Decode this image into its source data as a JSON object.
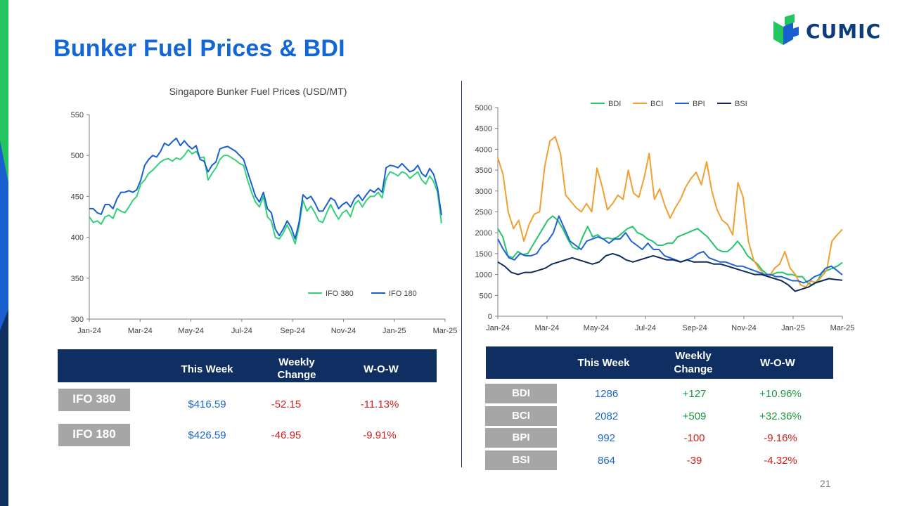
{
  "page": {
    "title": "Bunker Fuel Prices & BDI",
    "page_number": "21"
  },
  "logo": {
    "text": "CUMIC"
  },
  "colors": {
    "accent_blue": "#1266d6",
    "navy": "#0f2f62",
    "green": "#22c55e",
    "ifo180": "#1a5fd0",
    "ifo380": "#33d17a",
    "bdi": "#27c46b",
    "bci": "#f0a030",
    "bpi": "#1f63d6",
    "bsi": "#0e2a5a"
  },
  "left_table": {
    "headers": [
      "This Week",
      "Weekly\nChange",
      "W-O-W"
    ],
    "header_this_week": "This Week",
    "header_weekly": "Weekly",
    "header_change": "Change",
    "header_wow": "W-O-W",
    "rows": [
      {
        "label": "IFO 380",
        "this_week": "$416.59",
        "weekly_change": "-52.15",
        "wow": "-11.13%"
      },
      {
        "label": "IFO 180",
        "this_week": "$426.59",
        "weekly_change": "-46.95",
        "wow": "-9.91%"
      }
    ]
  },
  "right_table": {
    "header_this_week": "This Week",
    "header_weekly": "Weekly",
    "header_change": "Change",
    "header_wow": "W-O-W",
    "rows": [
      {
        "label": "BDI",
        "this_week": "1286",
        "weekly_change": "+127",
        "wow": "+10.96%"
      },
      {
        "label": "BCI",
        "this_week": "2082",
        "weekly_change": "+509",
        "wow": "+32.36%"
      },
      {
        "label": "BPI",
        "this_week": "992",
        "weekly_change": "-100",
        "wow": "-9.16%"
      },
      {
        "label": "BSI",
        "this_week": "864",
        "weekly_change": "-39",
        "wow": "-4.32%"
      }
    ]
  },
  "chart_data": [
    {
      "type": "line",
      "title": "Singapore Bunker Fuel Prices (USD/MT)",
      "xlabel": "",
      "ylabel": "",
      "x_ticks": [
        "Jan-24",
        "Mar-24",
        "May-24",
        "Jul-24",
        "Sep-24",
        "Nov-24",
        "Jan-25",
        "Mar-25"
      ],
      "ylim": [
        300,
        550
      ],
      "y_ticks": [
        300,
        350,
        400,
        450,
        500,
        550
      ],
      "legend_position": "bottom-right",
      "grid": false,
      "series": [
        {
          "name": "IFO 380",
          "color": "#33d17a",
          "values": [
            425,
            418,
            420,
            416,
            425,
            427,
            423,
            435,
            432,
            430,
            437,
            445,
            450,
            465,
            470,
            478,
            482,
            487,
            492,
            495,
            496,
            493,
            497,
            495,
            500,
            507,
            502,
            505,
            497,
            498,
            470,
            478,
            485,
            495,
            500,
            500,
            497,
            494,
            490,
            488,
            470,
            455,
            443,
            437,
            450,
            425,
            420,
            400,
            398,
            405,
            415,
            405,
            392,
            413,
            445,
            432,
            438,
            430,
            420,
            418,
            430,
            440,
            430,
            422,
            430,
            433,
            425,
            440,
            445,
            437,
            445,
            450,
            450,
            455,
            448,
            472,
            480,
            478,
            475,
            480,
            478,
            472,
            476,
            480,
            470,
            465,
            475,
            468,
            455,
            417
          ]
        },
        {
          "name": "IFO 180",
          "color": "#1a5fd0",
          "values": [
            435,
            435,
            430,
            428,
            440,
            440,
            435,
            447,
            455,
            455,
            457,
            455,
            458,
            470,
            488,
            495,
            500,
            498,
            505,
            515,
            512,
            517,
            521,
            512,
            518,
            512,
            508,
            512,
            495,
            493,
            480,
            488,
            492,
            508,
            510,
            511,
            508,
            505,
            500,
            495,
            480,
            465,
            450,
            443,
            455,
            435,
            430,
            410,
            402,
            410,
            420,
            412,
            398,
            418,
            452,
            447,
            450,
            442,
            432,
            432,
            440,
            448,
            445,
            435,
            440,
            443,
            437,
            447,
            452,
            445,
            452,
            458,
            455,
            460,
            455,
            485,
            488,
            487,
            485,
            490,
            485,
            480,
            482,
            488,
            478,
            474,
            484,
            477,
            460,
            427
          ]
        }
      ]
    },
    {
      "type": "line",
      "title": "",
      "x_ticks": [
        "Jan-24",
        "Mar-24",
        "May-24",
        "Jul-24",
        "Sep-24",
        "Nov-24",
        "Jan-25",
        "Mar-25"
      ],
      "ylim": [
        0,
        5000
      ],
      "y_ticks": [
        0,
        500,
        1000,
        1500,
        2000,
        2500,
        3000,
        3500,
        4000,
        4500,
        5000
      ],
      "legend_position": "top",
      "grid": false,
      "series": [
        {
          "name": "BDI",
          "color": "#27c46b",
          "values": [
            2100,
            1900,
            1450,
            1400,
            1550,
            1480,
            1500,
            1700,
            1900,
            2100,
            2300,
            2400,
            2300,
            2100,
            1850,
            1650,
            1600,
            1900,
            2150,
            1900,
            1950,
            1850,
            1880,
            1850,
            1900,
            2000,
            2100,
            2150,
            2000,
            1950,
            1850,
            1800,
            1700,
            1700,
            1750,
            1750,
            1900,
            1950,
            2000,
            2050,
            2100,
            2000,
            1900,
            1750,
            1600,
            1550,
            1550,
            1650,
            1800,
            1650,
            1450,
            1350,
            1250,
            1100,
            1000,
            1000,
            1050,
            1050,
            1000,
            1000,
            950,
            950,
            800,
            750,
            850,
            1050,
            1100,
            1150,
            1200,
            1286
          ]
        },
        {
          "name": "BCI",
          "color": "#f0a030",
          "values": [
            3800,
            3400,
            2500,
            2100,
            2300,
            1800,
            2200,
            2450,
            2500,
            3600,
            4200,
            4300,
            3900,
            2900,
            2750,
            2600,
            2500,
            2700,
            2500,
            3550,
            3100,
            2550,
            2700,
            2900,
            2800,
            3500,
            2950,
            2850,
            3300,
            3900,
            2800,
            3050,
            2650,
            2350,
            2600,
            2800,
            3100,
            3300,
            3450,
            3150,
            3700,
            3000,
            2550,
            2300,
            2200,
            1950,
            3200,
            2850,
            1800,
            1350,
            1150,
            1000,
            950,
            1150,
            1250,
            1550,
            1150,
            1000,
            750,
            700,
            850,
            800,
            950,
            1100,
            1800,
            1950,
            2082
          ]
        },
        {
          "name": "BPI",
          "color": "#1f63d6",
          "values": [
            1850,
            1600,
            1400,
            1350,
            1500,
            1450,
            1450,
            1500,
            1700,
            1800,
            2000,
            2400,
            2100,
            1800,
            1700,
            1600,
            1800,
            1850,
            1900,
            1850,
            1750,
            1850,
            1850,
            2000,
            1800,
            1700,
            1600,
            1750,
            1600,
            1600,
            1450,
            1400,
            1350,
            1300,
            1350,
            1400,
            1500,
            1550,
            1400,
            1350,
            1300,
            1300,
            1250,
            1200,
            1200,
            1150,
            1100,
            1050,
            1000,
            1000,
            950,
            950,
            900,
            850,
            850,
            800,
            850,
            950,
            1000,
            1150,
            1200,
            1100,
            992
          ]
        },
        {
          "name": "BSI",
          "color": "#0e2a5a",
          "values": [
            1300,
            1200,
            1050,
            1000,
            1050,
            1050,
            1100,
            1150,
            1250,
            1300,
            1350,
            1400,
            1350,
            1300,
            1250,
            1300,
            1450,
            1500,
            1450,
            1350,
            1300,
            1350,
            1400,
            1450,
            1400,
            1350,
            1350,
            1300,
            1350,
            1300,
            1300,
            1300,
            1250,
            1250,
            1200,
            1150,
            1100,
            1050,
            1000,
            1000,
            950,
            900,
            850,
            750,
            600,
            650,
            700,
            800,
            850,
            900,
            880,
            864
          ]
        }
      ]
    }
  ]
}
